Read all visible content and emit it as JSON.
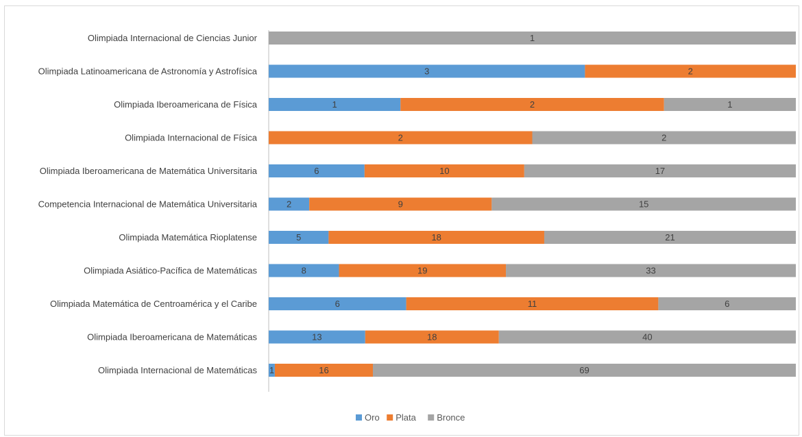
{
  "chart_data": {
    "type": "bar",
    "orientation": "horizontal",
    "stacked": "percent",
    "categories": [
      "Olimpiada Internacional de Ciencias Junior",
      "Olimpiada Latinoamericana de Astronomía y Astrofísica",
      "Olimpiada Iberoamericana de Física",
      "Olimpiada Internacional de Física",
      "Olimpiada Iberoamericana de Matemática Universitaria",
      "Competencia Internacional de Matemática Universitaria",
      "Olimpiada Matemática Rioplatense",
      "Olimpiada Asiático-Pacífica de Matemáticas",
      "Olimpiada Matemática de Centroamérica y el Caribe",
      "Olimpiada Iberoamericana de Matemáticas",
      "Olimpiada Internacional de Matemáticas"
    ],
    "series": [
      {
        "name": "Oro",
        "color": "#5b9bd5",
        "values": [
          null,
          3,
          1,
          null,
          6,
          2,
          5,
          8,
          6,
          13,
          1
        ]
      },
      {
        "name": "Plata",
        "color": "#ed7d31",
        "values": [
          null,
          2,
          2,
          2,
          10,
          9,
          18,
          19,
          11,
          18,
          16
        ]
      },
      {
        "name": "Bronce",
        "color": "#a5a5a5",
        "values": [
          1,
          null,
          1,
          2,
          17,
          15,
          21,
          33,
          6,
          40,
          69
        ]
      }
    ],
    "legend_position": "bottom",
    "grid": false
  }
}
